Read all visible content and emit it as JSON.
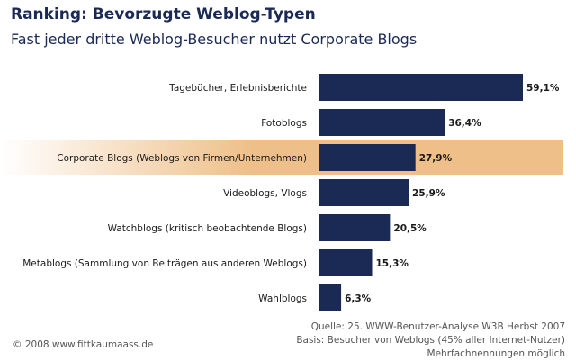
{
  "header": {
    "title": "Ranking: Bevorzugte Weblog-Typen",
    "subtitle": "Fast jeder dritte Weblog-Besucher nutzt Corporate Blogs"
  },
  "chart_data": {
    "type": "bar",
    "orientation": "horizontal",
    "title": "Ranking: Bevorzugte Weblog-Typen",
    "subtitle": "Fast jeder dritte Weblog-Besucher nutzt Corporate Blogs",
    "categories": [
      "Tagebücher, Erlebnisberichte",
      "Fotoblogs",
      "Corporate Blogs (Weblogs von Firmen/Unternehmen)",
      "Videoblogs, Vlogs",
      "Watchblogs (kritisch beobachtende Blogs)",
      "Metablogs (Sammlung von Beiträgen aus anderen Weblogs)",
      "Wahlblogs"
    ],
    "values": [
      59.1,
      36.4,
      27.9,
      25.9,
      20.5,
      15.3,
      6.3
    ],
    "value_labels": [
      "59,1%",
      "36,4%",
      "27,9%",
      "25,9%",
      "20,5%",
      "15,3%",
      "6,3%"
    ],
    "highlight_index": 2,
    "xlabel": "",
    "ylabel": "",
    "xlim": [
      0,
      59.1
    ],
    "unit": "%"
  },
  "colors": {
    "bar": "#1b2a55",
    "highlight_center": "#eebf88",
    "highlight_edge": "#ffffff",
    "title": "#1b2a55"
  },
  "footer": {
    "copyright": "© 2008 www.fittkaumaass.de",
    "source_line1": "Quelle: 25. WWW-Benutzer-Analyse W3B Herbst 2007",
    "source_line2": "Basis: Besucher von Weblogs (45% aller Internet-Nutzer)",
    "source_line3": "Mehrfachnennungen möglich"
  }
}
